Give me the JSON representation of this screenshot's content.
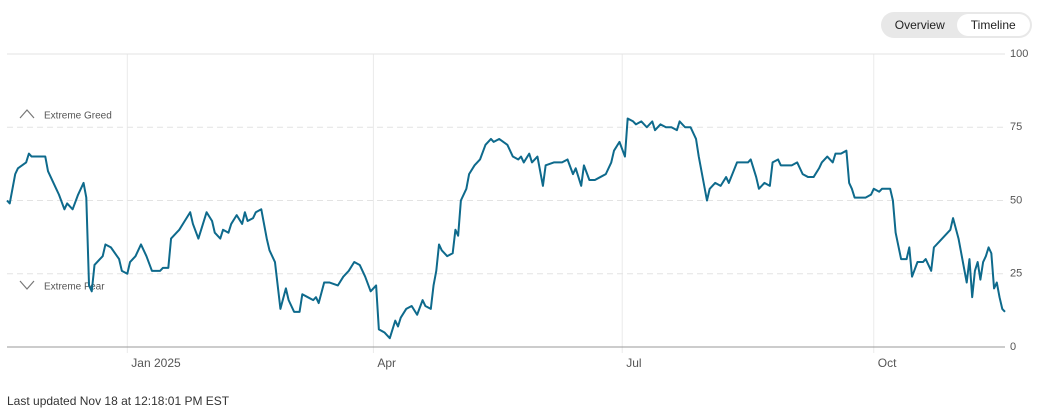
{
  "controls": {
    "options": [
      "Overview",
      "Timeline"
    ],
    "selected": "Timeline"
  },
  "footer": "Last updated Nov 18 at 12:18:01 PM EST",
  "chart_data": {
    "type": "line",
    "color": "#0e6a8c",
    "annotations": [
      "Extreme Greed",
      "Extreme Fear"
    ],
    "xlim": [
      "2024-11-18",
      "2025-11-18"
    ],
    "xticks": [
      {
        "value": "2025-01-01",
        "label": "Jan 2025"
      },
      {
        "value": "2025-04-01",
        "label": "Apr"
      },
      {
        "value": "2025-07-01",
        "label": "Jul"
      },
      {
        "value": "2025-10-01",
        "label": "Oct"
      }
    ],
    "ylim": [
      0,
      100
    ],
    "yticks": [
      0,
      25,
      50,
      75,
      100
    ],
    "grid": true,
    "x": [
      "2024-11-18",
      "2024-11-19",
      "2024-11-21",
      "2024-11-22",
      "2024-11-25",
      "2024-11-26",
      "2024-11-27",
      "2024-12-02",
      "2024-12-03",
      "2024-12-06",
      "2024-12-07",
      "2024-12-09",
      "2024-12-10",
      "2024-12-12",
      "2024-12-14",
      "2024-12-16",
      "2024-12-17",
      "2024-12-18",
      "2024-12-19",
      "2024-12-20",
      "2024-12-22",
      "2024-12-23",
      "2024-12-24",
      "2024-12-26",
      "2024-12-29",
      "2024-12-30",
      "2025-01-01",
      "2025-01-02",
      "2025-01-04",
      "2025-01-06",
      "2025-01-08",
      "2025-01-10",
      "2025-01-13",
      "2025-01-14",
      "2025-01-16",
      "2025-01-17",
      "2025-01-19",
      "2025-01-20",
      "2025-01-22",
      "2025-01-24",
      "2025-01-25",
      "2025-01-27",
      "2025-01-28",
      "2025-01-30",
      "2025-02-01",
      "2025-02-02",
      "2025-02-04",
      "2025-02-05",
      "2025-02-07",
      "2025-02-08",
      "2025-02-10",
      "2025-02-12",
      "2025-02-13",
      "2025-02-14",
      "2025-02-16",
      "2025-02-17",
      "2025-02-19",
      "2025-02-21",
      "2025-02-22",
      "2025-02-24",
      "2025-02-26",
      "2025-02-28",
      "2025-03-01",
      "2025-03-03",
      "2025-03-05",
      "2025-03-06",
      "2025-03-08",
      "2025-03-10",
      "2025-03-11",
      "2025-03-12",
      "2025-03-14",
      "2025-03-16",
      "2025-03-19",
      "2025-03-21",
      "2025-03-23",
      "2025-03-25",
      "2025-03-27",
      "2025-03-29",
      "2025-03-31",
      "2025-04-02",
      "2025-04-03",
      "2025-04-05",
      "2025-04-07",
      "2025-04-09",
      "2025-04-10",
      "2025-04-11",
      "2025-04-13",
      "2025-04-15",
      "2025-04-17",
      "2025-04-19",
      "2025-04-20",
      "2025-04-22",
      "2025-04-23",
      "2025-04-24",
      "2025-04-25",
      "2025-04-26",
      "2025-04-28",
      "2025-04-30",
      "2025-05-01",
      "2025-05-02",
      "2025-05-03",
      "2025-05-05",
      "2025-05-06",
      "2025-05-08",
      "2025-05-10",
      "2025-05-12",
      "2025-05-14",
      "2025-05-15",
      "2025-05-17",
      "2025-05-20",
      "2025-05-22",
      "2025-05-24",
      "2025-05-25",
      "2025-05-26",
      "2025-05-28",
      "2025-05-29",
      "2025-05-31",
      "2025-06-02",
      "2025-06-03",
      "2025-06-06",
      "2025-06-09",
      "2025-06-11",
      "2025-06-13",
      "2025-06-14",
      "2025-06-16",
      "2025-06-17",
      "2025-06-19",
      "2025-06-21",
      "2025-06-23",
      "2025-06-25",
      "2025-06-27",
      "2025-06-28",
      "2025-06-30",
      "2025-07-02",
      "2025-07-03",
      "2025-07-05",
      "2025-07-06",
      "2025-07-08",
      "2025-07-10",
      "2025-07-12",
      "2025-07-13",
      "2025-07-15",
      "2025-07-17",
      "2025-07-19",
      "2025-07-21",
      "2025-07-22",
      "2025-07-24",
      "2025-07-26",
      "2025-07-28",
      "2025-07-29",
      "2025-08-01",
      "2025-08-02",
      "2025-08-04",
      "2025-08-06",
      "2025-08-08",
      "2025-08-09",
      "2025-08-12",
      "2025-08-13",
      "2025-08-16",
      "2025-08-17",
      "2025-08-19",
      "2025-08-20",
      "2025-08-22",
      "2025-08-24",
      "2025-08-25",
      "2025-08-27",
      "2025-08-28",
      "2025-08-30",
      "2025-09-01",
      "2025-09-03",
      "2025-09-05",
      "2025-09-07",
      "2025-09-09",
      "2025-09-11",
      "2025-09-12",
      "2025-09-14",
      "2025-09-16",
      "2025-09-17",
      "2025-09-19",
      "2025-09-21",
      "2025-09-22",
      "2025-09-23",
      "2025-09-24",
      "2025-09-26",
      "2025-09-28",
      "2025-09-30",
      "2025-10-01",
      "2025-10-03",
      "2025-10-04",
      "2025-10-07",
      "2025-10-08",
      "2025-10-09",
      "2025-10-11",
      "2025-10-12",
      "2025-10-13",
      "2025-10-14",
      "2025-10-15",
      "2025-10-17",
      "2025-10-19",
      "2025-10-20",
      "2025-10-22",
      "2025-10-23",
      "2025-10-25",
      "2025-10-27",
      "2025-10-29",
      "2025-10-30",
      "2025-11-01",
      "2025-11-02",
      "2025-11-04",
      "2025-11-05",
      "2025-11-06",
      "2025-11-07",
      "2025-11-08",
      "2025-11-09",
      "2025-11-10",
      "2025-11-11",
      "2025-11-12",
      "2025-11-13",
      "2025-11-14",
      "2025-11-15",
      "2025-11-16",
      "2025-11-17",
      "2025-11-18"
    ],
    "values": [
      50,
      49,
      59,
      61,
      63,
      66,
      65,
      65,
      60,
      54,
      52,
      47,
      49,
      47,
      52,
      56,
      51,
      21,
      19,
      28,
      30,
      31,
      35,
      34,
      30,
      26,
      25,
      29,
      31,
      35,
      31,
      26,
      26,
      27,
      27,
      37,
      39,
      40,
      43,
      46,
      42,
      37,
      40,
      46,
      43,
      39,
      37,
      40,
      39,
      42,
      45,
      42,
      46,
      43,
      44,
      46,
      47,
      37,
      33,
      29,
      13,
      20,
      16,
      12,
      12,
      18,
      17,
      16,
      17,
      15,
      22,
      22,
      21,
      24,
      26,
      29,
      28,
      24,
      19,
      21,
      6,
      5,
      3,
      9,
      7,
      10,
      13,
      14,
      11,
      16,
      14,
      13,
      21,
      26,
      35,
      33,
      31,
      32,
      40,
      38,
      50,
      54,
      59,
      62,
      64,
      69,
      71,
      70,
      71,
      69,
      65,
      64,
      65,
      63,
      66,
      63,
      65,
      55,
      62,
      63,
      63,
      64,
      59,
      61,
      55,
      62,
      57,
      57,
      58,
      59,
      63,
      67,
      70,
      65,
      78,
      77,
      76,
      77,
      75,
      77,
      74,
      76,
      75,
      75,
      74,
      77,
      75,
      75,
      71,
      65,
      50,
      54,
      56,
      55,
      58,
      56,
      63,
      63,
      63,
      64,
      58,
      54,
      56,
      55,
      63,
      64,
      62,
      62,
      62,
      63,
      59,
      58,
      58,
      61,
      63,
      65,
      63,
      66,
      66,
      67,
      56,
      54,
      51,
      51,
      51,
      52,
      54,
      53,
      54,
      54,
      50,
      39,
      30,
      30,
      30,
      34,
      24,
      29,
      29,
      30,
      26,
      34,
      36,
      38,
      40,
      44,
      37,
      32,
      22,
      30,
      17,
      26,
      29,
      23,
      29,
      31,
      34,
      32,
      20,
      22,
      17,
      13,
      12
    ]
  }
}
